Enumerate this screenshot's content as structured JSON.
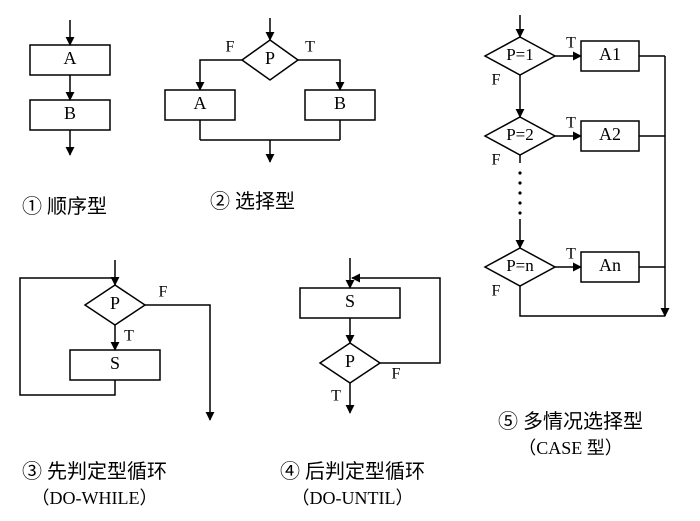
{
  "colors": {
    "bg": "#ffffff",
    "stroke": "#000000",
    "text": "#000000"
  },
  "stroke_width": 1.5,
  "arrow_size": 6,
  "fonts": {
    "box_label": 18,
    "edge_label": 16,
    "caption": 20,
    "caption_sub": 18
  },
  "diagrams": {
    "sequential": {
      "caption": "① 顺序型",
      "boxes": {
        "A": "A",
        "B": "B"
      }
    },
    "selection": {
      "caption": "② 选择型",
      "condition": "P",
      "true_label": "T",
      "false_label": "F",
      "boxes": {
        "A": "A",
        "B": "B"
      }
    },
    "do_while": {
      "caption_main": "③ 先判定型循环",
      "caption_sub": "（DO-WHILE）",
      "condition": "P",
      "true_label": "T",
      "false_label": "F",
      "body": "S"
    },
    "do_until": {
      "caption_main": "④ 后判定型循环",
      "caption_sub": "（DO-UNTIL）",
      "condition": "P",
      "true_label": "T",
      "false_label": "F",
      "body": "S"
    },
    "case": {
      "caption_main": "⑤ 多情况选择型",
      "caption_sub": "（CASE 型）",
      "true_label": "T",
      "false_label": "F",
      "rows": [
        {
          "cond": "P=1",
          "action": "A1"
        },
        {
          "cond": "P=2",
          "action": "A2"
        },
        {
          "cond": "P=n",
          "action": "An"
        }
      ]
    }
  }
}
